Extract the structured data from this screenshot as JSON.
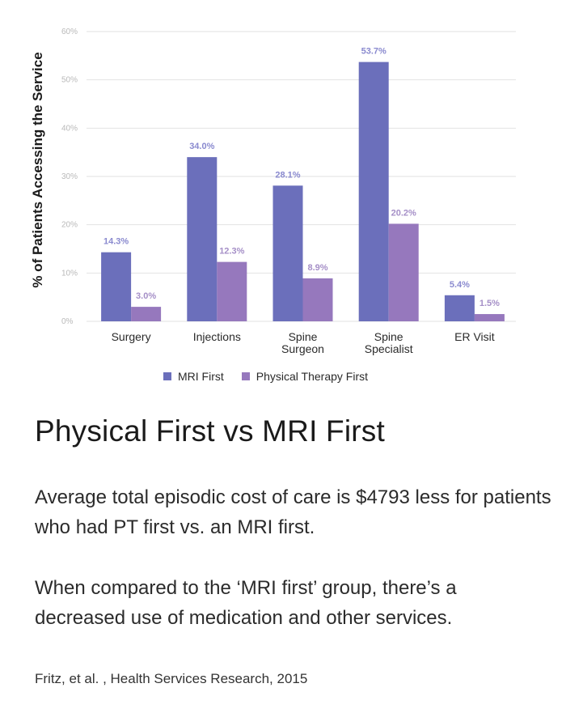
{
  "chart_data": {
    "type": "bar",
    "categories": [
      [
        "Surgery"
      ],
      [
        "Injections"
      ],
      [
        "Spine",
        "Surgeon"
      ],
      [
        "Spine",
        "Specialist"
      ],
      [
        "ER Visit"
      ]
    ],
    "series": [
      {
        "name": "MRI First",
        "values": [
          14.3,
          34.0,
          28.1,
          53.7,
          5.4
        ],
        "labels": [
          "14.3%",
          "34.0%",
          "28.1%",
          "53.7%",
          "5.4%"
        ],
        "color": "#6b6fbb"
      },
      {
        "name": "Physical Therapy First",
        "values": [
          3.0,
          12.3,
          8.9,
          20.2,
          1.5
        ],
        "labels": [
          "3.0%",
          "12.3%",
          "8.9%",
          "20.2%",
          "1.5%"
        ],
        "color": "#9678bd"
      }
    ],
    "ylabel": "% of Patients Accessing the Service",
    "ylim": [
      0,
      60
    ],
    "yticks": [
      0,
      10,
      20,
      30,
      40,
      50,
      60
    ],
    "ytick_labels": [
      "0%",
      "10%",
      "20%",
      "30%",
      "40%",
      "50%",
      "60%"
    ],
    "grid": true,
    "legend_position": "bottom-center"
  },
  "legend": {
    "mri": "MRI First",
    "pt": "Physical Therapy First"
  },
  "headline": "Physical First vs MRI First",
  "paragraphs": [
    "Average total episodic cost of care is $4793 less for patients who had PT first vs. an MRI first.",
    "When compared to the ‘MRI first’ group, there’s a decreased use of medication and other services."
  ],
  "citation": "Fritz, et al. , Health Services Research, 2015",
  "colors": {
    "mri": "#6b6fbb",
    "pt": "#9678bd",
    "grid": "#e2e2e2"
  }
}
